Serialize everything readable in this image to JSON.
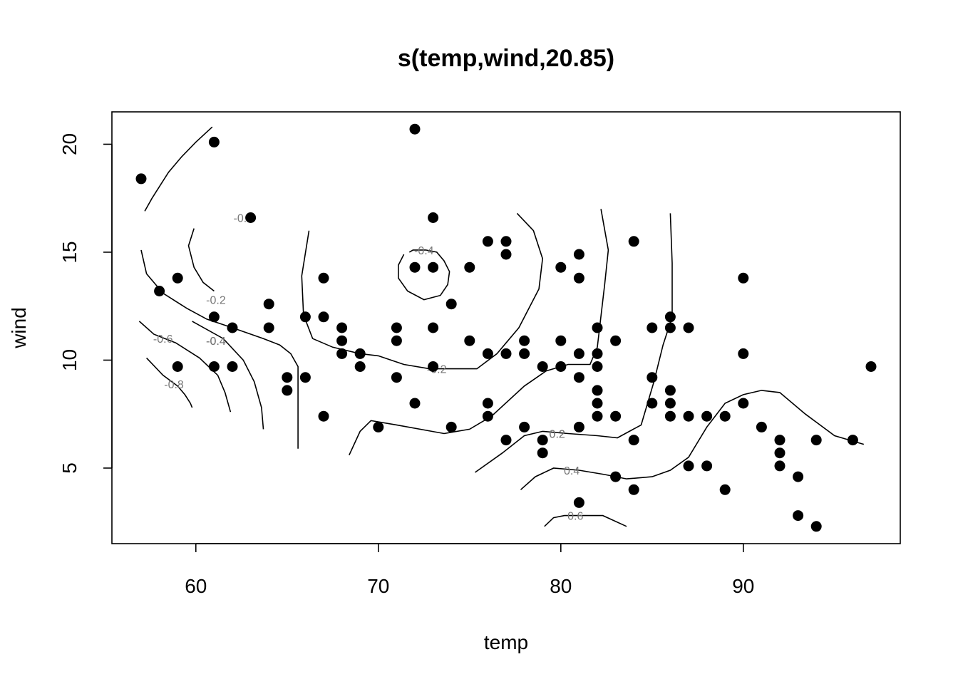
{
  "chart_data": {
    "type": "scatter",
    "title": "s(temp,wind,20.85)",
    "xlabel": "temp",
    "ylabel": "wind",
    "xlim": [
      55.4,
      98.6
    ],
    "ylim": [
      1.5,
      21.5
    ],
    "x_ticks": [
      60,
      70,
      80,
      90
    ],
    "y_ticks": [
      5,
      10,
      15,
      20
    ],
    "grid": false,
    "points": [
      [
        57,
        18.4
      ],
      [
        58,
        13.2
      ],
      [
        59,
        13.8
      ],
      [
        59,
        9.7
      ],
      [
        61,
        20.1
      ],
      [
        61,
        12.0
      ],
      [
        61,
        9.7
      ],
      [
        62,
        11.5
      ],
      [
        62,
        9.7
      ],
      [
        63,
        16.6
      ],
      [
        64,
        12.6
      ],
      [
        64,
        11.5
      ],
      [
        65,
        9.2
      ],
      [
        65,
        8.6
      ],
      [
        66,
        12.0
      ],
      [
        66,
        9.2
      ],
      [
        67,
        13.8
      ],
      [
        67,
        12.0
      ],
      [
        67,
        7.4
      ],
      [
        68,
        11.5
      ],
      [
        68,
        10.9
      ],
      [
        68,
        10.3
      ],
      [
        69,
        10.3
      ],
      [
        69,
        9.7
      ],
      [
        70,
        6.9
      ],
      [
        71,
        11.5
      ],
      [
        71,
        10.9
      ],
      [
        71,
        9.2
      ],
      [
        72,
        20.7
      ],
      [
        72,
        14.3
      ],
      [
        72,
        8.0
      ],
      [
        73,
        16.6
      ],
      [
        73,
        14.3
      ],
      [
        73,
        11.5
      ],
      [
        73,
        9.7
      ],
      [
        74,
        12.6
      ],
      [
        74,
        6.9
      ],
      [
        75,
        14.3
      ],
      [
        75,
        10.9
      ],
      [
        76,
        15.5
      ],
      [
        76,
        10.3
      ],
      [
        76,
        8.0
      ],
      [
        76,
        7.4
      ],
      [
        77,
        15.5
      ],
      [
        77,
        14.9
      ],
      [
        77,
        10.3
      ],
      [
        77,
        6.3
      ],
      [
        78,
        10.9
      ],
      [
        78,
        10.3
      ],
      [
        78,
        6.9
      ],
      [
        79,
        9.7
      ],
      [
        79,
        6.3
      ],
      [
        79,
        5.7
      ],
      [
        80,
        14.3
      ],
      [
        80,
        10.9
      ],
      [
        80,
        9.7
      ],
      [
        81,
        14.9
      ],
      [
        81,
        13.8
      ],
      [
        81,
        10.3
      ],
      [
        81,
        9.2
      ],
      [
        81,
        6.9
      ],
      [
        81,
        3.4
      ],
      [
        82,
        11.5
      ],
      [
        82,
        10.3
      ],
      [
        82,
        9.7
      ],
      [
        82,
        8.6
      ],
      [
        82,
        8.0
      ],
      [
        82,
        7.4
      ],
      [
        83,
        10.9
      ],
      [
        83,
        7.4
      ],
      [
        83,
        4.6
      ],
      [
        84,
        15.5
      ],
      [
        84,
        6.3
      ],
      [
        84,
        4.0
      ],
      [
        85,
        11.5
      ],
      [
        85,
        9.2
      ],
      [
        85,
        8.0
      ],
      [
        86,
        12.0
      ],
      [
        86,
        11.5
      ],
      [
        86,
        8.6
      ],
      [
        86,
        8.0
      ],
      [
        86,
        7.4
      ],
      [
        87,
        11.5
      ],
      [
        87,
        7.4
      ],
      [
        87,
        5.1
      ],
      [
        88,
        7.4
      ],
      [
        88,
        5.1
      ],
      [
        89,
        7.4
      ],
      [
        89,
        4.0
      ],
      [
        90,
        13.8
      ],
      [
        90,
        10.3
      ],
      [
        90,
        8.0
      ],
      [
        91,
        6.9
      ],
      [
        92,
        6.3
      ],
      [
        92,
        5.7
      ],
      [
        92,
        5.1
      ],
      [
        93,
        4.6
      ],
      [
        93,
        2.8
      ],
      [
        94,
        6.3
      ],
      [
        94,
        2.3
      ],
      [
        96,
        6.3
      ],
      [
        97,
        9.7
      ]
    ],
    "contours": [
      {
        "label": "-0.8",
        "label_at": [
          58.8,
          8.9
        ],
        "path": [
          [
            57.3,
            10.1
          ],
          [
            58.2,
            9.3
          ],
          [
            59.0,
            8.8
          ],
          [
            59.4,
            8.4
          ],
          [
            59.7,
            8.0
          ],
          [
            59.8,
            7.8
          ]
        ]
      },
      {
        "label": "-0.6",
        "label_at": [
          58.2,
          11.0
        ],
        "path": [
          [
            56.9,
            11.8
          ],
          [
            57.7,
            11.2
          ],
          [
            58.9,
            10.8
          ],
          [
            60.2,
            10.1
          ],
          [
            61.2,
            9.3
          ],
          [
            61.6,
            8.5
          ],
          [
            61.9,
            7.6
          ]
        ]
      },
      {
        "label": "-0.4",
        "label_at": [
          61.1,
          10.9
        ],
        "path": [
          [
            57.2,
            16.9
          ],
          [
            57.6,
            17.5
          ],
          [
            58.5,
            18.7
          ],
          [
            59.2,
            19.4
          ],
          [
            60.0,
            20.1
          ],
          [
            60.9,
            20.8
          ]
        ]
      },
      {
        "label": "-0.4",
        "label_at": [
          61.1,
          10.9
        ],
        "path": [
          [
            59.8,
            11.8
          ],
          [
            61.5,
            11.0
          ],
          [
            62.6,
            10.0
          ],
          [
            63.2,
            9.0
          ],
          [
            63.6,
            7.8
          ],
          [
            63.7,
            6.8
          ]
        ]
      },
      {
        "label": "-0.2",
        "label_at": [
          61.1,
          12.8
        ],
        "path": [
          [
            57.0,
            15.1
          ],
          [
            57.3,
            14.0
          ],
          [
            58.2,
            13.1
          ],
          [
            59.5,
            12.4
          ],
          [
            60.6,
            11.9
          ],
          [
            62.0,
            11.5
          ],
          [
            63.7,
            11.0
          ],
          [
            64.6,
            10.7
          ],
          [
            65.2,
            10.3
          ],
          [
            65.6,
            9.7
          ],
          [
            65.6,
            8.3
          ],
          [
            65.6,
            7.0
          ],
          [
            65.6,
            5.9
          ]
        ]
      },
      {
        "label": "-0.2",
        "label_at": [
          62.6,
          16.6
        ],
        "path": [
          [
            59.9,
            16.1
          ],
          [
            59.6,
            15.3
          ],
          [
            59.9,
            14.3
          ],
          [
            60.4,
            13.6
          ],
          [
            61.0,
            13.2
          ]
        ]
      },
      {
        "label": "-0.2",
        "label_at": [
          73.2,
          9.6
        ],
        "path": [
          [
            66.2,
            16.0
          ],
          [
            65.8,
            13.9
          ],
          [
            65.9,
            12.1
          ],
          [
            66.4,
            11.0
          ],
          [
            67.5,
            10.6
          ],
          [
            69.0,
            10.3
          ],
          [
            70.0,
            10.2
          ],
          [
            71.4,
            9.8
          ],
          [
            72.8,
            9.6
          ],
          [
            75.4,
            9.6
          ],
          [
            76.5,
            10.3
          ],
          [
            77.7,
            11.5
          ],
          [
            78.8,
            13.3
          ],
          [
            79.0,
            14.7
          ],
          [
            78.5,
            16.0
          ],
          [
            77.6,
            16.8
          ]
        ]
      },
      {
        "label": "-0.4",
        "label_at": [
          72.5,
          15.1
        ],
        "path": [
          [
            71.7,
            15.0
          ],
          [
            71.9,
            15.1
          ],
          [
            72.6,
            15.1
          ],
          [
            73.2,
            15.0
          ],
          [
            73.6,
            14.6
          ],
          [
            73.9,
            14.1
          ],
          [
            73.8,
            13.5
          ],
          [
            73.4,
            13.0
          ],
          [
            72.5,
            12.8
          ],
          [
            71.6,
            13.2
          ],
          [
            71.1,
            13.8
          ],
          [
            71.1,
            14.4
          ],
          [
            71.4,
            14.9
          ]
        ]
      },
      {
        "label": "0.2",
        "label_at": [
          79.8,
          6.6
        ],
        "path": [
          [
            68.4,
            5.6
          ],
          [
            69.0,
            6.7
          ],
          [
            69.6,
            7.2
          ],
          [
            71.0,
            7.0
          ],
          [
            73.6,
            6.6
          ],
          [
            75.0,
            6.8
          ],
          [
            76.2,
            7.4
          ],
          [
            78.0,
            8.8
          ],
          [
            79.2,
            9.5
          ],
          [
            80.4,
            9.8
          ],
          [
            81.6,
            9.8
          ],
          [
            82.0,
            10.6
          ],
          [
            82.4,
            13.5
          ],
          [
            82.6,
            15.1
          ],
          [
            82.2,
            17.0
          ]
        ]
      },
      {
        "label": "0.2",
        "label_at": [
          79.8,
          6.6
        ],
        "path": [
          [
            75.3,
            4.8
          ],
          [
            76.8,
            5.7
          ],
          [
            78.0,
            6.5
          ],
          [
            79.0,
            6.7
          ],
          [
            80.4,
            6.6
          ],
          [
            82.0,
            6.5
          ],
          [
            83.1,
            6.4
          ],
          [
            84.4,
            7.0
          ],
          [
            85.1,
            9.0
          ],
          [
            85.6,
            10.7
          ],
          [
            86.1,
            12.0
          ],
          [
            86.1,
            14.5
          ],
          [
            86.0,
            16.8
          ]
        ]
      },
      {
        "label": "0.4",
        "label_at": [
          80.6,
          4.9
        ],
        "path": [
          [
            77.8,
            4.0
          ],
          [
            78.6,
            4.6
          ],
          [
            79.6,
            5.0
          ],
          [
            81.0,
            4.9
          ],
          [
            82.4,
            4.7
          ],
          [
            83.6,
            4.5
          ],
          [
            85.0,
            4.6
          ],
          [
            86.0,
            4.9
          ],
          [
            87.0,
            5.5
          ],
          [
            88.0,
            6.9
          ],
          [
            89.0,
            8.0
          ],
          [
            90.0,
            8.4
          ],
          [
            91.0,
            8.6
          ],
          [
            92.0,
            8.5
          ],
          [
            93.4,
            7.5
          ],
          [
            95.0,
            6.5
          ],
          [
            96.6,
            6.1
          ]
        ]
      },
      {
        "label": "0.6",
        "label_at": [
          80.8,
          2.8
        ],
        "path": [
          [
            79.1,
            2.3
          ],
          [
            79.6,
            2.7
          ],
          [
            80.2,
            2.8
          ],
          [
            81.5,
            2.8
          ],
          [
            82.3,
            2.8
          ],
          [
            83.6,
            2.3
          ]
        ]
      }
    ]
  }
}
